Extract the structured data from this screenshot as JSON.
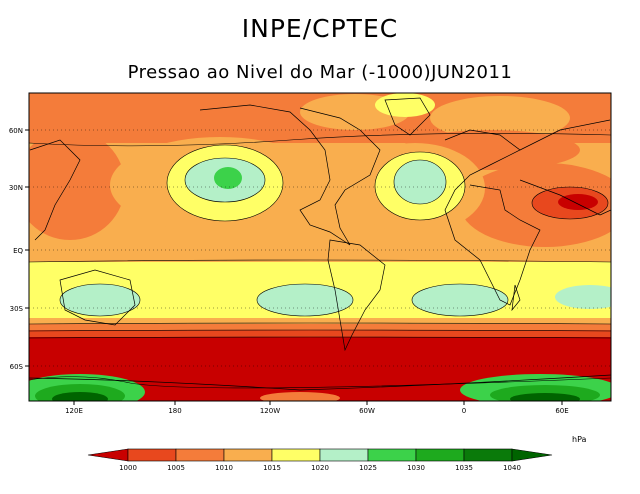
{
  "header": {
    "title": "INPE/CPTEC",
    "subtitle": "Pressao ao Nivel do Mar (-1000)JUN2011"
  },
  "map": {
    "lat_ticks": [
      "60N",
      "30N",
      "EQ",
      "30S",
      "60S"
    ],
    "lon_ticks": [
      "120E",
      "180",
      "120W",
      "60W",
      "0",
      "60E"
    ]
  },
  "legend": {
    "unit": "hPa",
    "levels": [
      "1000",
      "1005",
      "1010",
      "1015",
      "1020",
      "1025",
      "1030",
      "1035",
      "1040"
    ],
    "colors": [
      "#c80000",
      "#e8481e",
      "#f47c3a",
      "#f9ae4e",
      "#ffff66",
      "#b4f0c8",
      "#3cd24a",
      "#1eaa1e",
      "#0a7a0a",
      "#006400"
    ]
  }
}
